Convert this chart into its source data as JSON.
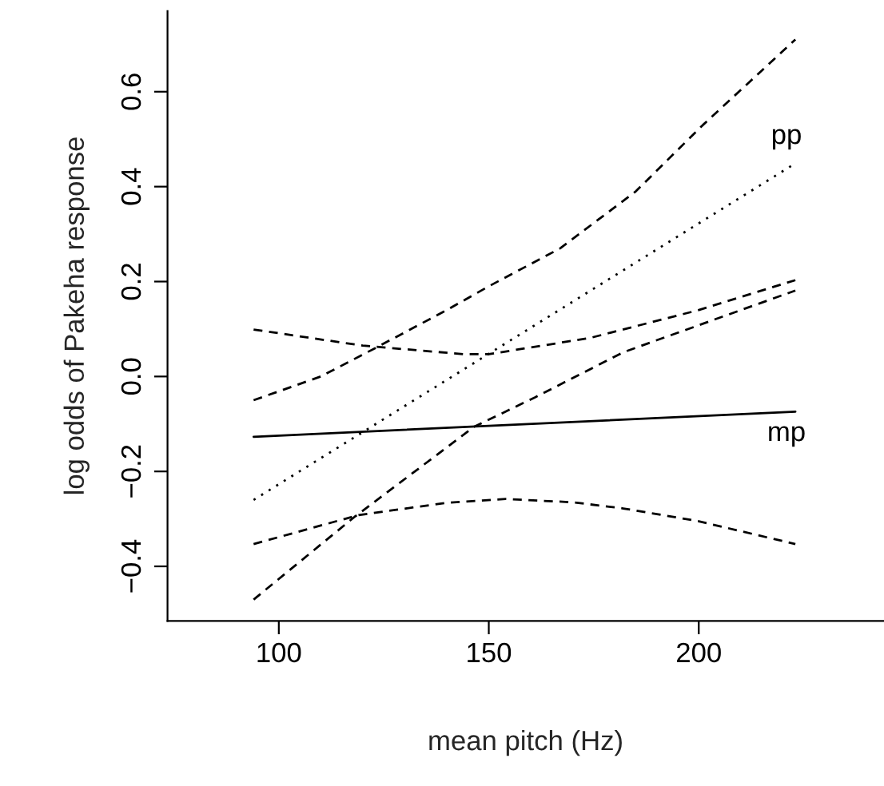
{
  "chart_data": {
    "type": "line",
    "xlabel": "mean pitch (Hz)",
    "ylabel": "log odds of Pakeha response",
    "xlim": [
      73.5,
      244
    ],
    "ylim": [
      -0.515,
      0.77
    ],
    "xticks": [
      100,
      150,
      200
    ],
    "yticks": [
      {
        "value": -0.4,
        "label": "−0.4"
      },
      {
        "value": -0.2,
        "label": "−0.2"
      },
      {
        "value": 0.0,
        "label": "0.0"
      },
      0.2,
      0.4,
      0.6
    ],
    "grid": false,
    "legend": false,
    "series": [
      {
        "name": "pp",
        "color": "#000000",
        "line_style": "dotted",
        "x": [
          94,
          223
        ],
        "values": [
          -0.26,
          0.449
        ]
      },
      {
        "color": "#000000",
        "line_style": "dashed",
        "x": [
          94,
          110,
          123,
          140,
          150,
          167,
          185,
          201,
          212,
          223
        ],
        "values": [
          -0.05,
          0.0,
          0.06,
          0.14,
          0.19,
          0.27,
          0.39,
          0.53,
          0.62,
          0.71
        ]
      },
      {
        "color": "#000000",
        "line_style": "dashed",
        "x": [
          94,
          118,
          146.5,
          161,
          182,
          223
        ],
        "values": [
          -0.47,
          -0.296,
          -0.106,
          -0.044,
          0.051,
          0.181
        ]
      },
      {
        "name": "mp",
        "color": "#000000",
        "line_style": "solid",
        "x": [
          94,
          223
        ],
        "values": [
          -0.127,
          -0.074
        ]
      },
      {
        "color": "#000000",
        "line_style": "dashed",
        "x": [
          94,
          120,
          144,
          150,
          174,
          200,
          223
        ],
        "values": [
          0.099,
          0.065,
          0.047,
          0.047,
          0.081,
          0.14,
          0.203
        ]
      },
      {
        "color": "#000000",
        "line_style": "dashed",
        "x": [
          94,
          119,
          140,
          154,
          170,
          182,
          200,
          223
        ],
        "values": [
          -0.353,
          -0.292,
          -0.266,
          -0.258,
          -0.265,
          -0.278,
          -0.305,
          -0.353
        ]
      }
    ]
  }
}
